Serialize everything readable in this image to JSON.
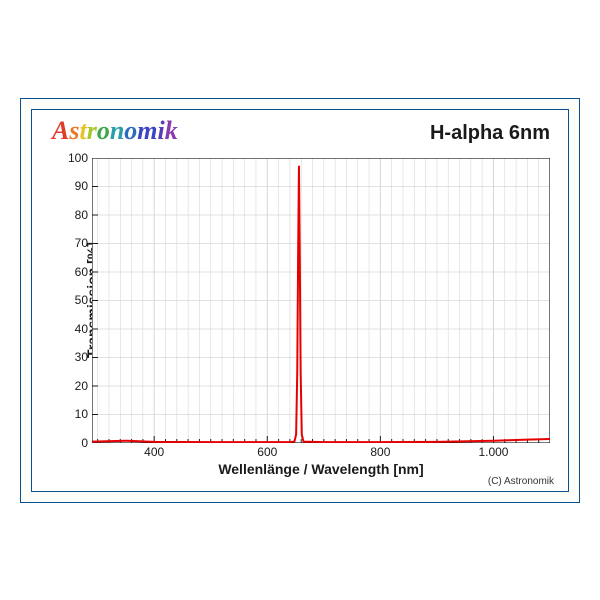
{
  "brand": {
    "text": "Astronomik",
    "letter_colors": [
      "#e23b2a",
      "#e8782a",
      "#e8c22a",
      "#a6c82a",
      "#3fa74a",
      "#2a9ea8",
      "#2a6abf",
      "#3b45c2",
      "#5c3bb8",
      "#8a3bb0",
      "#b53aa2"
    ],
    "fontsize_pt": 26
  },
  "title": {
    "text": "H-alpha 6nm",
    "fontsize_pt": 20,
    "color": "#1a1a1a"
  },
  "chart": {
    "type": "line",
    "background_color": "#ffffff",
    "frame_border_color": "#0a4f8f",
    "outer_frame_background": "#fefef9",
    "grid_color": "#d8d8d8",
    "grid_width": 1,
    "line_color": "#e60000",
    "line_width": 2,
    "xlabel": "Wellenlänge / Wavelength [nm]",
    "ylabel": "Transmission [%]",
    "label_fontsize_pt": 14,
    "tick_fontsize_pt": 12,
    "xlim": [
      290,
      1100
    ],
    "ylim": [
      0,
      100
    ],
    "xticks_major": [
      400,
      600,
      800,
      1000
    ],
    "xticks_minor_step": 20,
    "yticks": [
      0,
      10,
      20,
      30,
      40,
      50,
      60,
      70,
      80,
      90,
      100
    ],
    "xtick_labels": [
      "400",
      "600",
      "800",
      "1.000"
    ],
    "series": [
      {
        "x": 290,
        "y": 0.5
      },
      {
        "x": 350,
        "y": 0.8
      },
      {
        "x": 400,
        "y": 0.4
      },
      {
        "x": 500,
        "y": 0.3
      },
      {
        "x": 600,
        "y": 0.3
      },
      {
        "x": 640,
        "y": 0.3
      },
      {
        "x": 648,
        "y": 0.5
      },
      {
        "x": 651,
        "y": 3
      },
      {
        "x": 653,
        "y": 25
      },
      {
        "x": 654.5,
        "y": 65
      },
      {
        "x": 656,
        "y": 97
      },
      {
        "x": 657.5,
        "y": 65
      },
      {
        "x": 659,
        "y": 25
      },
      {
        "x": 661,
        "y": 3
      },
      {
        "x": 664,
        "y": 0.5
      },
      {
        "x": 700,
        "y": 0.3
      },
      {
        "x": 800,
        "y": 0.3
      },
      {
        "x": 900,
        "y": 0.4
      },
      {
        "x": 1000,
        "y": 0.8
      },
      {
        "x": 1060,
        "y": 1.2
      },
      {
        "x": 1100,
        "y": 1.4
      }
    ]
  },
  "copyright": "(C) Astronomik"
}
